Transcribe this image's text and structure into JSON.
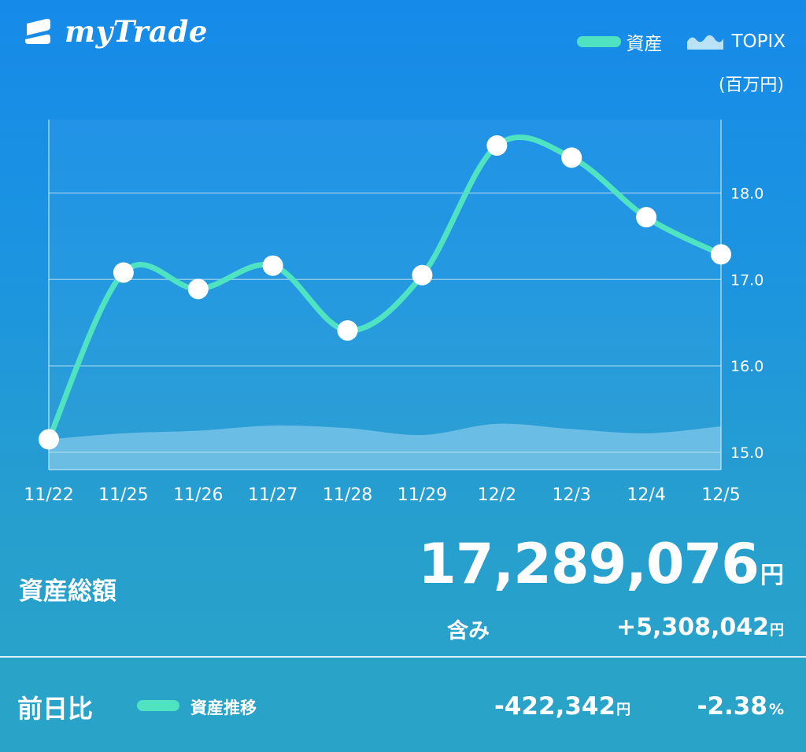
{
  "app": {
    "name": "myTrade"
  },
  "legend": {
    "assets": "資産",
    "topix": "TOPIX"
  },
  "unit_label": "(百万円)",
  "colors": {
    "asset_line": "#4fe3c1",
    "topix_area": "#b9e2f7",
    "background_top": "#168ae9",
    "background_bottom": "#2aa3c8"
  },
  "chart_data": {
    "type": "line",
    "categories": [
      "11/22",
      "11/25",
      "11/26",
      "11/27",
      "11/28",
      "11/29",
      "12/2",
      "12/3",
      "12/4",
      "12/5"
    ],
    "series": [
      {
        "name": "資産",
        "values": [
          15.15,
          17.08,
          16.89,
          17.16,
          16.41,
          17.05,
          18.55,
          18.41,
          17.72,
          17.29
        ]
      },
      {
        "name": "TOPIX",
        "values": [
          15.15,
          15.22,
          15.25,
          15.31,
          15.28,
          15.2,
          15.33,
          15.27,
          15.22,
          15.3
        ]
      }
    ],
    "y_ticks": [
      "15.0",
      "16.0",
      "17.0",
      "18.0"
    ],
    "ylim": [
      14.8,
      18.85
    ],
    "ylabel": "(百万円)",
    "grid": true,
    "legend_position": "top-right"
  },
  "summary": {
    "total_label": "資産総額",
    "total_value": "17,289,076",
    "total_unit": "円",
    "included_label": "含み",
    "included_value": "+5,308,042",
    "included_unit": "円"
  },
  "daily": {
    "label": "前日比",
    "trend_label": "資産推移",
    "diff_value": "-422,342",
    "diff_unit": "円",
    "percent_value": "-2.38",
    "percent_unit": "%"
  }
}
